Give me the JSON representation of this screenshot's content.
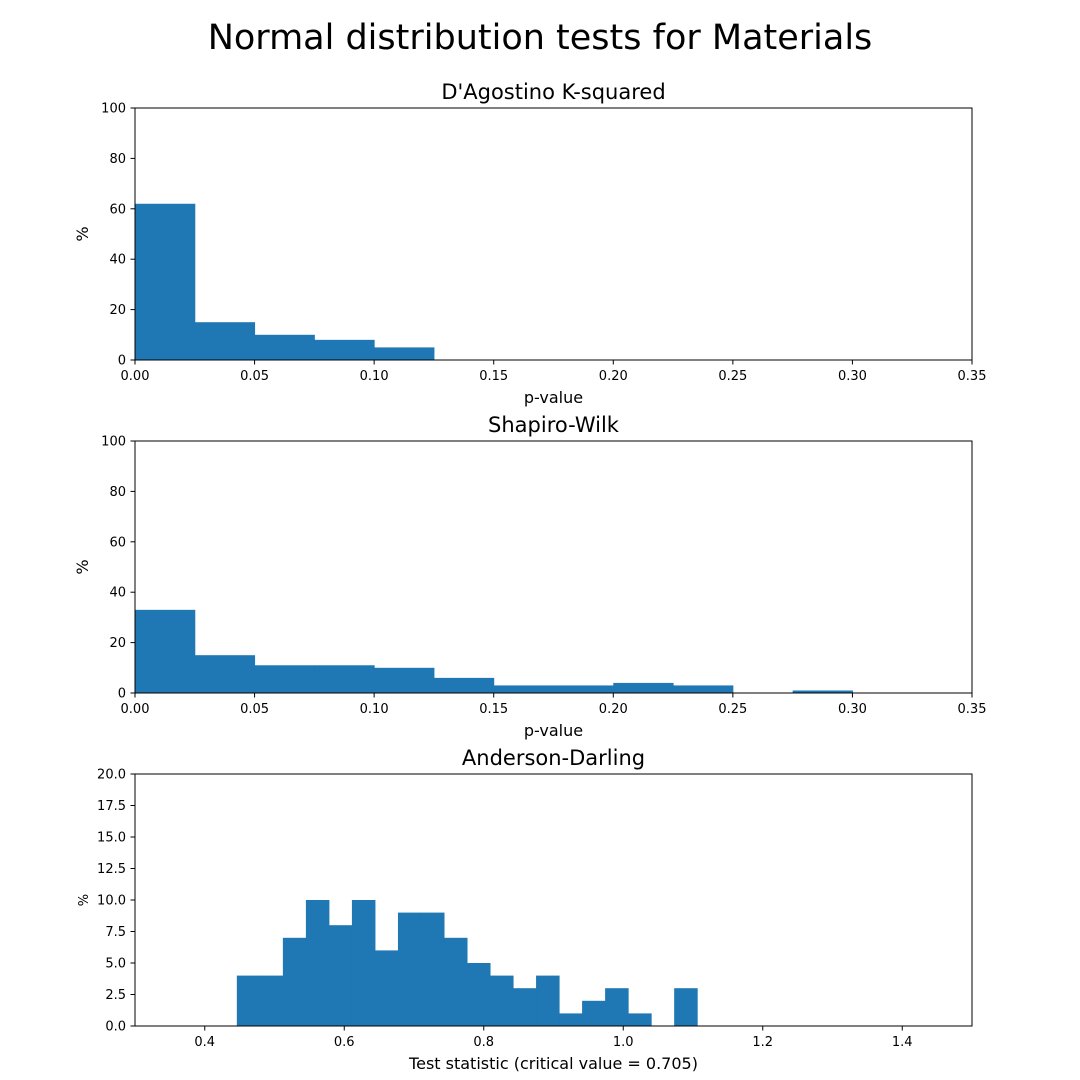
{
  "title": "Normal distribution tests for Materials",
  "chart_data": [
    {
      "type": "bar",
      "title": "D'Agostino K-squared",
      "xlabel": "p-value",
      "ylabel": "%",
      "xlim": [
        0,
        0.35
      ],
      "ylim": [
        0,
        100
      ],
      "xticks": [
        "0.00",
        "0.05",
        "0.10",
        "0.15",
        "0.20",
        "0.25",
        "0.30",
        "0.35"
      ],
      "yticks": [
        "0",
        "20",
        "40",
        "60",
        "80",
        "100"
      ],
      "bin_width": 0.025,
      "bins": [
        {
          "x": 0.0,
          "value": 62
        },
        {
          "x": 0.025,
          "value": 15
        },
        {
          "x": 0.05,
          "value": 10
        },
        {
          "x": 0.075,
          "value": 8
        },
        {
          "x": 0.1,
          "value": 5
        }
      ],
      "color": "#1f77b4"
    },
    {
      "type": "bar",
      "title": "Shapiro-Wilk",
      "xlabel": "p-value",
      "ylabel": "%",
      "xlim": [
        0,
        0.35
      ],
      "ylim": [
        0,
        100
      ],
      "xticks": [
        "0.00",
        "0.05",
        "0.10",
        "0.15",
        "0.20",
        "0.25",
        "0.30",
        "0.35"
      ],
      "yticks": [
        "0",
        "20",
        "40",
        "60",
        "80",
        "100"
      ],
      "bin_width": 0.025,
      "bins": [
        {
          "x": 0.0,
          "value": 33
        },
        {
          "x": 0.025,
          "value": 15
        },
        {
          "x": 0.05,
          "value": 11
        },
        {
          "x": 0.075,
          "value": 11
        },
        {
          "x": 0.1,
          "value": 10
        },
        {
          "x": 0.125,
          "value": 6
        },
        {
          "x": 0.15,
          "value": 3
        },
        {
          "x": 0.175,
          "value": 3
        },
        {
          "x": 0.2,
          "value": 4
        },
        {
          "x": 0.225,
          "value": 3
        },
        {
          "x": 0.275,
          "value": 1
        }
      ],
      "color": "#1f77b4"
    },
    {
      "type": "bar",
      "title": "Anderson-Darling",
      "xlabel": "Test statistic (critical value = 0.705)",
      "ylabel": "%",
      "xlim": [
        0.3,
        1.5
      ],
      "ylim": [
        0,
        20
      ],
      "xticks": [
        "0.4",
        "0.6",
        "0.8",
        "1.0",
        "1.2",
        "1.4"
      ],
      "yticks": [
        "0.0",
        "2.5",
        "5.0",
        "7.5",
        "10.0",
        "12.5",
        "15.0",
        "17.5",
        "20.0"
      ],
      "bin_width": 0.033,
      "bins": [
        {
          "x": 0.446,
          "value": 4
        },
        {
          "x": 0.479,
          "value": 4
        },
        {
          "x": 0.512,
          "value": 7
        },
        {
          "x": 0.545,
          "value": 10
        },
        {
          "x": 0.578,
          "value": 8
        },
        {
          "x": 0.611,
          "value": 10
        },
        {
          "x": 0.644,
          "value": 6
        },
        {
          "x": 0.677,
          "value": 9
        },
        {
          "x": 0.71,
          "value": 9
        },
        {
          "x": 0.743,
          "value": 7
        },
        {
          "x": 0.776,
          "value": 5
        },
        {
          "x": 0.809,
          "value": 4
        },
        {
          "x": 0.842,
          "value": 3
        },
        {
          "x": 0.875,
          "value": 4
        },
        {
          "x": 0.908,
          "value": 1
        },
        {
          "x": 0.941,
          "value": 2
        },
        {
          "x": 0.974,
          "value": 3
        },
        {
          "x": 1.007,
          "value": 1
        },
        {
          "x": 1.073,
          "value": 3
        }
      ],
      "color": "#1f77b4"
    }
  ]
}
